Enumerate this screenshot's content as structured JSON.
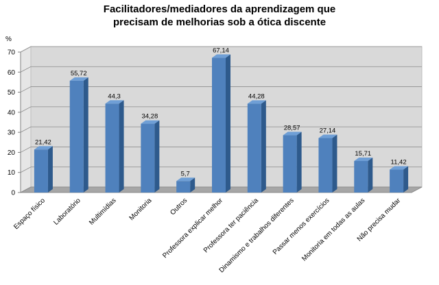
{
  "chart_data": {
    "type": "bar",
    "title_line1": "Facilitadores/mediadores da aprendizagem que",
    "title_line2": "precisam de melhorias sob a ótica discente",
    "ylabel": "%",
    "ylim": [
      0,
      70
    ],
    "yticks": [
      "0",
      "10",
      "20",
      "30",
      "40",
      "50",
      "60",
      "70"
    ],
    "grid": true,
    "categories": [
      "Espaço físico",
      "Laboratório",
      "Multimídias",
      "Monitoria",
      "Outros",
      "Professora explicar melhor",
      "Professora ter paciência",
      "Dinamismo e trabalhos diferentes",
      "Passar menos exercícios",
      "Monitoria em todas as aulas",
      "Não precisa mudar"
    ],
    "values": [
      21.42,
      55.72,
      44.3,
      34.28,
      5.7,
      67.14,
      44.28,
      28.57,
      27.14,
      15.71,
      11.42
    ],
    "value_labels": [
      "21,42",
      "55,72",
      "44,3",
      "34,28",
      "5,7",
      "67,14",
      "44,28",
      "28,57",
      "27,14",
      "15,71",
      "11,42"
    ],
    "colors": {
      "bar_front": "#4f81bd",
      "bar_side": "#2e5a8c",
      "bar_top": "#6f9fd6",
      "wall": "#d9d9d9",
      "floor": "#a6a6a6",
      "grid": "#8c8c8c"
    }
  }
}
